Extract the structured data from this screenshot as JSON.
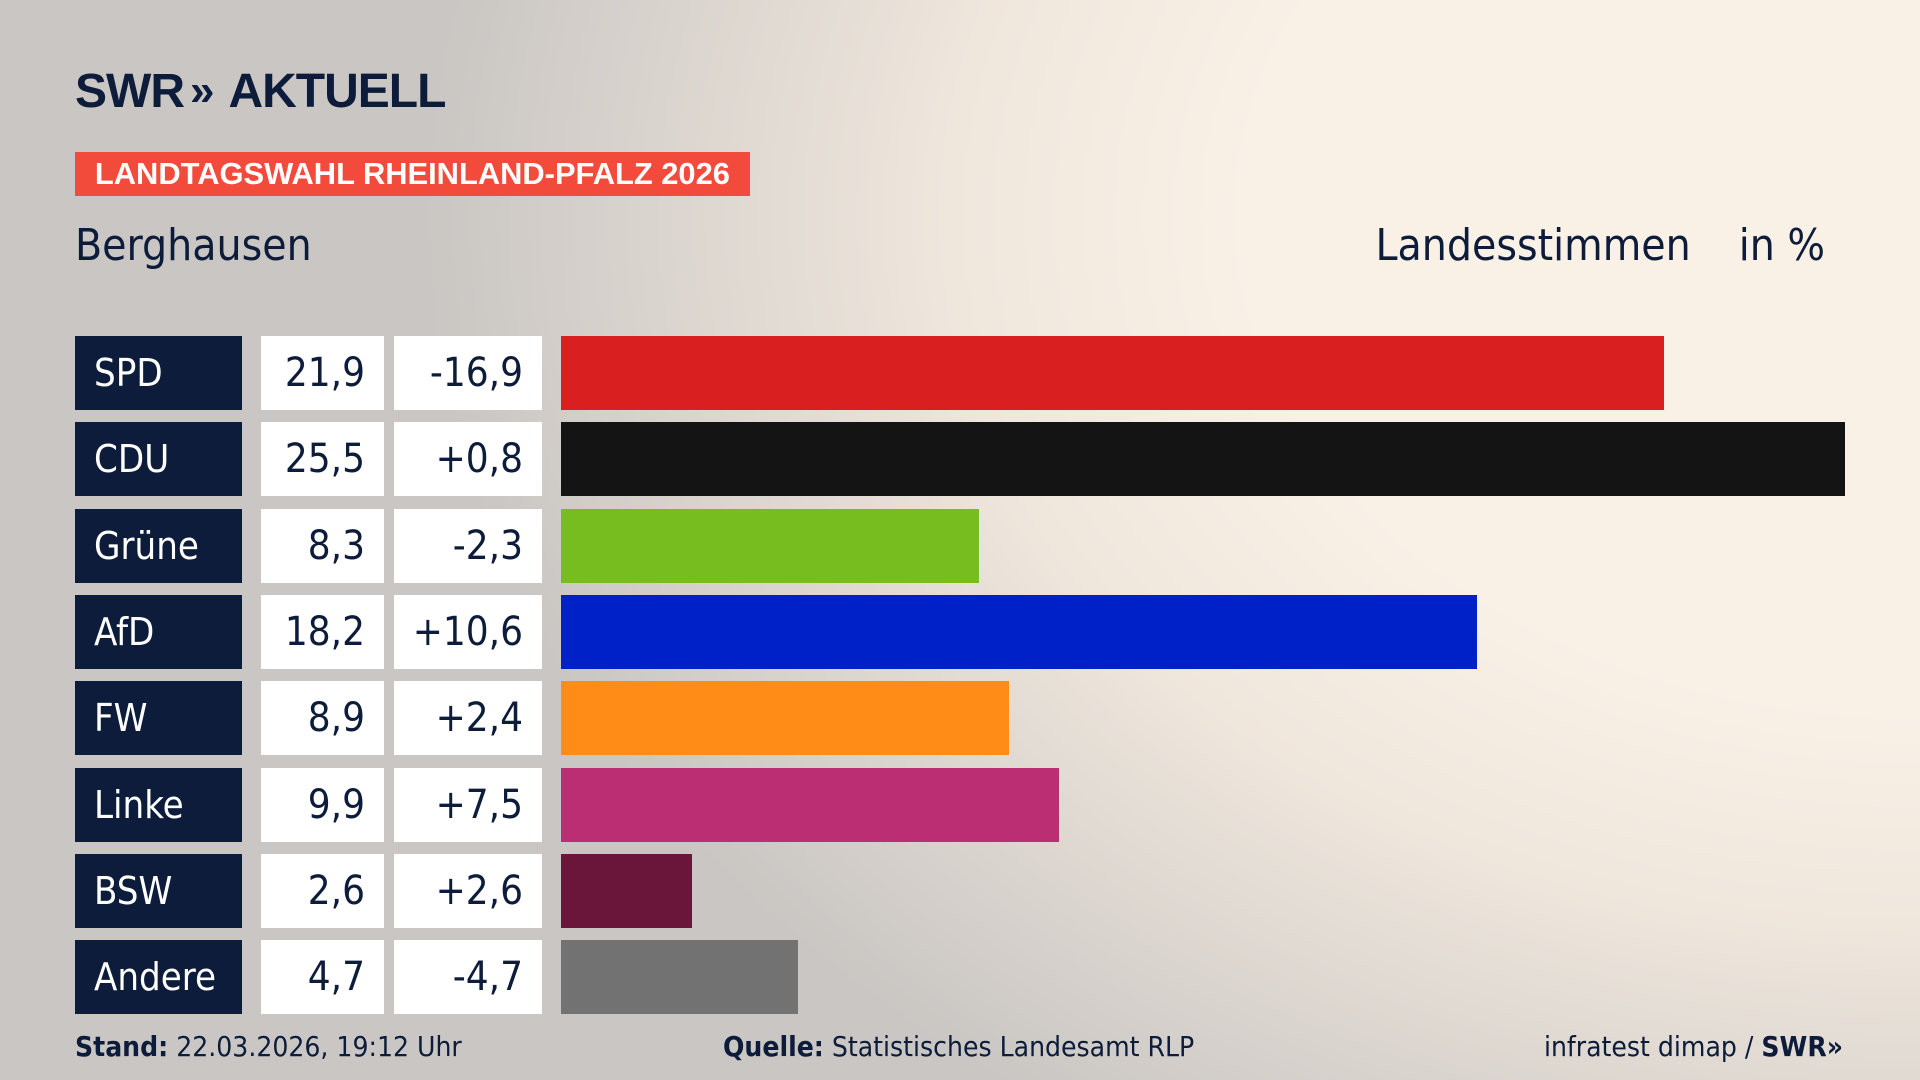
{
  "header": {
    "logo": "SWR AKTUELL",
    "logo_brand": "SWR",
    "logo_chevrons": "»",
    "logo_suffix": "AKTUELL",
    "banner": "LANDTAGSWAHL RHEINLAND-PFALZ 2026",
    "place": "Berghausen",
    "metric": "Landesstimmen",
    "unit": "in %"
  },
  "chart_data": {
    "type": "bar",
    "orientation": "horizontal",
    "title": "",
    "xlabel": "",
    "ylabel": "",
    "categories": [
      "SPD",
      "CDU",
      "Grüne",
      "AfD",
      "FW",
      "Linke",
      "BSW",
      "Andere"
    ],
    "values": [
      21.9,
      25.5,
      8.3,
      18.2,
      8.9,
      9.9,
      2.6,
      4.7
    ],
    "value_labels": [
      "21,9",
      "25,5",
      "8,3",
      "18,2",
      "8,9",
      "9,9",
      "2,6",
      "4,7"
    ],
    "diff_labels": [
      "-16,9",
      "+0,8",
      "-2,3",
      "+10,6",
      "+2,4",
      "+7,5",
      "+2,6",
      "-4,7"
    ],
    "colors": [
      "#d91f20",
      "#141414",
      "#78bd1f",
      "#0021c8",
      "#ff8c17",
      "#bb2e73",
      "#6a163b",
      "#727272"
    ],
    "xlim": [
      0,
      25.5
    ],
    "grid": false,
    "legend": "none"
  },
  "footer": {
    "stand_label": "Stand:",
    "stand_value": "22.03.2026, 19:12 Uhr",
    "source_label": "Quelle:",
    "source_value": "Statistisches Landesamt RLP",
    "credit": "infratest dimap /",
    "credit_brand": "SWR»"
  }
}
